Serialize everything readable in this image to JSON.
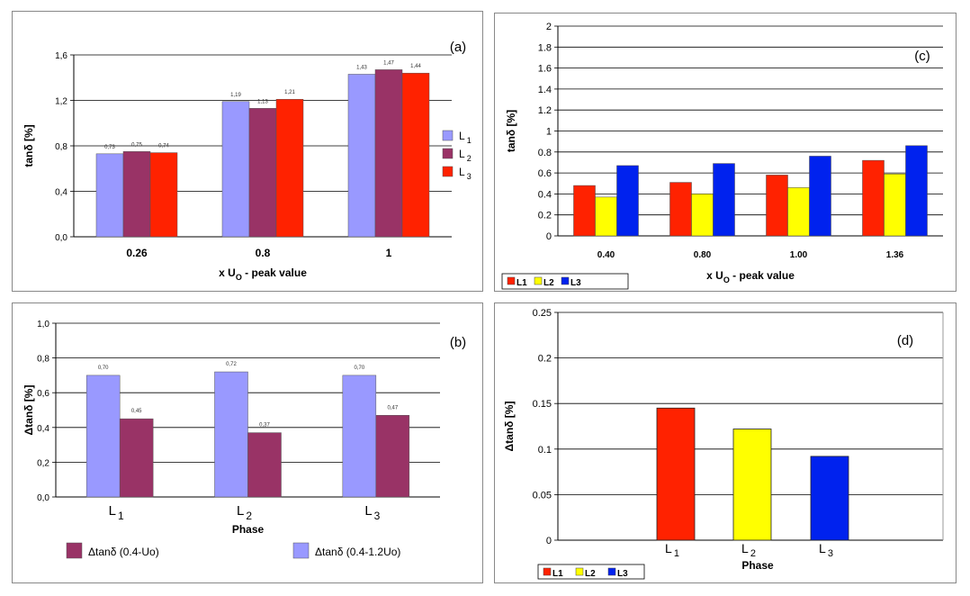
{
  "colors": {
    "lavender": "#9999ff",
    "maroon": "#993366",
    "red": "#ff2200",
    "yellow": "#ffff00",
    "blue": "#0022ee",
    "grid": "#000000"
  },
  "chart_data": [
    {
      "id": "a",
      "type": "bar",
      "panel_label": "(a)",
      "categories": [
        "0.26",
        "0.8",
        "1"
      ],
      "series": [
        {
          "name": "L1",
          "base": "L",
          "sub": "1",
          "color": "#9999ff",
          "values": [
            0.73,
            1.19,
            1.43
          ],
          "labels": [
            "0,73",
            "1,19",
            "1,43"
          ]
        },
        {
          "name": "L2",
          "base": "L",
          "sub": "2",
          "color": "#993366",
          "values": [
            0.75,
            1.13,
            1.47
          ],
          "labels": [
            "0,75",
            "1,13",
            "1,47"
          ]
        },
        {
          "name": "L3",
          "base": "L",
          "sub": "3",
          "color": "#ff2200",
          "values": [
            0.74,
            1.21,
            1.44
          ],
          "labels": [
            "0,74",
            "1,21",
            "1,44"
          ]
        }
      ],
      "ylim": [
        0,
        1.6
      ],
      "yticks": [
        "0,0",
        "0,4",
        "0,8",
        "1,2",
        "1,6"
      ],
      "ylabel": "tanδ [%]",
      "xlabel": {
        "prefix": "x U",
        "sub": "O",
        "suffix": " - peak value"
      },
      "legend_position": "right",
      "grid": true
    },
    {
      "id": "b",
      "type": "bar",
      "panel_label": "(b)",
      "categories": [
        {
          "base": "L",
          "sub": "1"
        },
        {
          "base": "L",
          "sub": "2"
        },
        {
          "base": "L",
          "sub": "3"
        }
      ],
      "series": [
        {
          "name": "Δtanδ (0.4-1.2Uo)",
          "color": "#9999ff",
          "values": [
            0.7,
            0.72,
            0.7
          ],
          "labels": [
            "0,70",
            "0,72",
            "0,70"
          ]
        },
        {
          "name": "Δtanδ (0.4-Uo)",
          "color": "#993366",
          "values": [
            0.45,
            0.37,
            0.47
          ],
          "labels": [
            "0,45",
            "0,37",
            "0,47"
          ]
        }
      ],
      "ylim": [
        0,
        1.0
      ],
      "yticks": [
        "0,0",
        "0,2",
        "0,4",
        "0,6",
        "0,8",
        "1,0"
      ],
      "ylabel": "Δtanδ [%]",
      "xlabel": "Phase",
      "legend_position": "bottom",
      "grid": true
    },
    {
      "id": "c",
      "type": "bar",
      "panel_label": "(c)",
      "categories": [
        "0.40",
        "0.80",
        "1.00",
        "1.36"
      ],
      "series": [
        {
          "name": "L1",
          "color": "#ff2200",
          "values": [
            0.48,
            0.51,
            0.58,
            0.72
          ]
        },
        {
          "name": "L2",
          "color": "#ffff00",
          "values": [
            0.37,
            0.4,
            0.46,
            0.59
          ]
        },
        {
          "name": "L3",
          "color": "#0022ee",
          "values": [
            0.67,
            0.69,
            0.76,
            0.86
          ]
        }
      ],
      "ylim": [
        0,
        2
      ],
      "yticks": [
        "0",
        "0.2",
        "0.4",
        "0.6",
        "0.8",
        "1",
        "1.2",
        "1.4",
        "1.6",
        "1.8",
        "2"
      ],
      "ylabel": "tanδ [%]",
      "xlabel": {
        "prefix": "x U",
        "sub": "O",
        "suffix": " - peak value"
      },
      "legend_position": "bottom-left",
      "grid": true
    },
    {
      "id": "d",
      "type": "bar",
      "panel_label": "(d)",
      "categories": [
        {
          "base": "L",
          "sub": "1"
        },
        {
          "base": "L",
          "sub": "2"
        },
        {
          "base": "L",
          "sub": "3"
        }
      ],
      "series": [
        {
          "name": "L1",
          "color": "#ff2200"
        },
        {
          "name": "L2",
          "color": "#ffff00"
        },
        {
          "name": "L3",
          "color": "#0022ee"
        }
      ],
      "values": [
        0.145,
        0.122,
        0.092
      ],
      "ylim": [
        0,
        0.25
      ],
      "yticks": [
        "0",
        "0.05",
        "0.1",
        "0.15",
        "0.2",
        "0.25"
      ],
      "ylabel": "Δtanδ [%]",
      "xlabel": "Phase",
      "legend_position": "bottom-left",
      "grid": true
    }
  ]
}
